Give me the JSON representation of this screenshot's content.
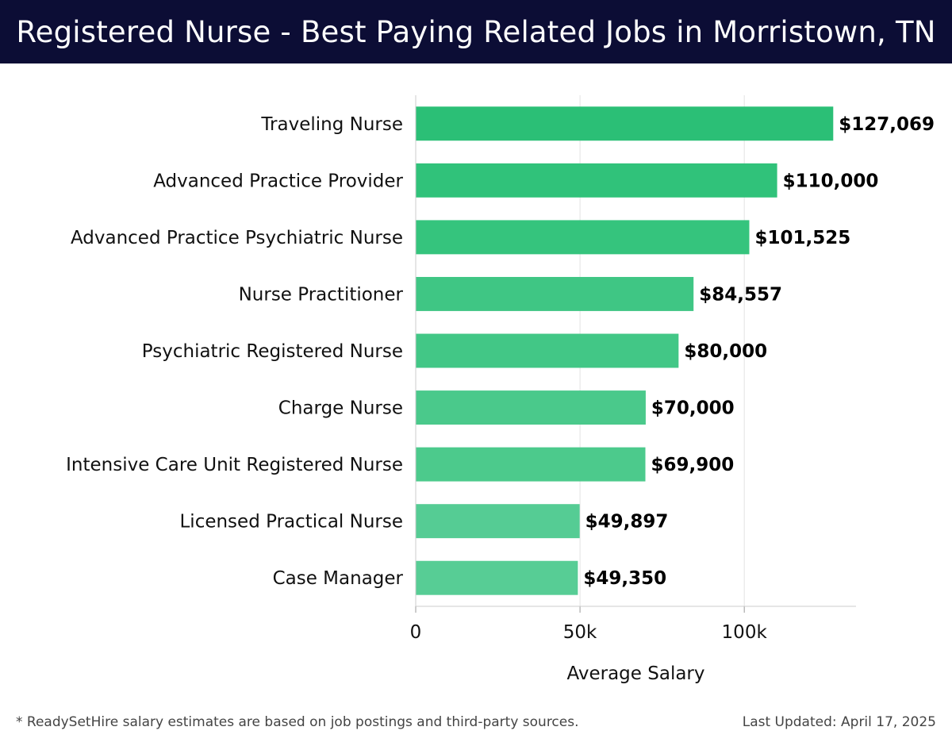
{
  "header": {
    "title": "Registered Nurse - Best Paying Related Jobs in Morristown, TN"
  },
  "chart_data": {
    "type": "bar",
    "orientation": "horizontal",
    "categories": [
      "Traveling Nurse",
      "Advanced Practice Provider",
      "Advanced Practice Psychiatric Nurse",
      "Nurse Practitioner",
      "Psychiatric Registered Nurse",
      "Charge Nurse",
      "Intensive Care Unit Registered Nurse",
      "Licensed Practical Nurse",
      "Case Manager"
    ],
    "values": [
      127069,
      110000,
      101525,
      84557,
      80000,
      70000,
      69900,
      49897,
      49350
    ],
    "value_labels": [
      "$127,069",
      "$110,000",
      "$101,525",
      "$84,557",
      "$80,000",
      "$70,000",
      "$69,900",
      "$49,897",
      "$49,350"
    ],
    "xlabel": "Average Salary",
    "ylabel": "",
    "xlim": [
      0,
      134000
    ],
    "x_ticks": [
      0,
      50000,
      100000
    ],
    "x_tick_labels": [
      "0",
      "50k",
      "100k"
    ],
    "grid": "vertical",
    "bar_colors": [
      "#2bbf76",
      "#30c27a",
      "#35c47d",
      "#3fc684",
      "#42c786",
      "#4ac98b",
      "#4cca8c",
      "#55cc94",
      "#57cd95"
    ]
  },
  "footer": {
    "note": "* ReadySetHire salary estimates are based on job postings and third-party sources.",
    "updated": "Last Updated: April 17, 2025"
  }
}
